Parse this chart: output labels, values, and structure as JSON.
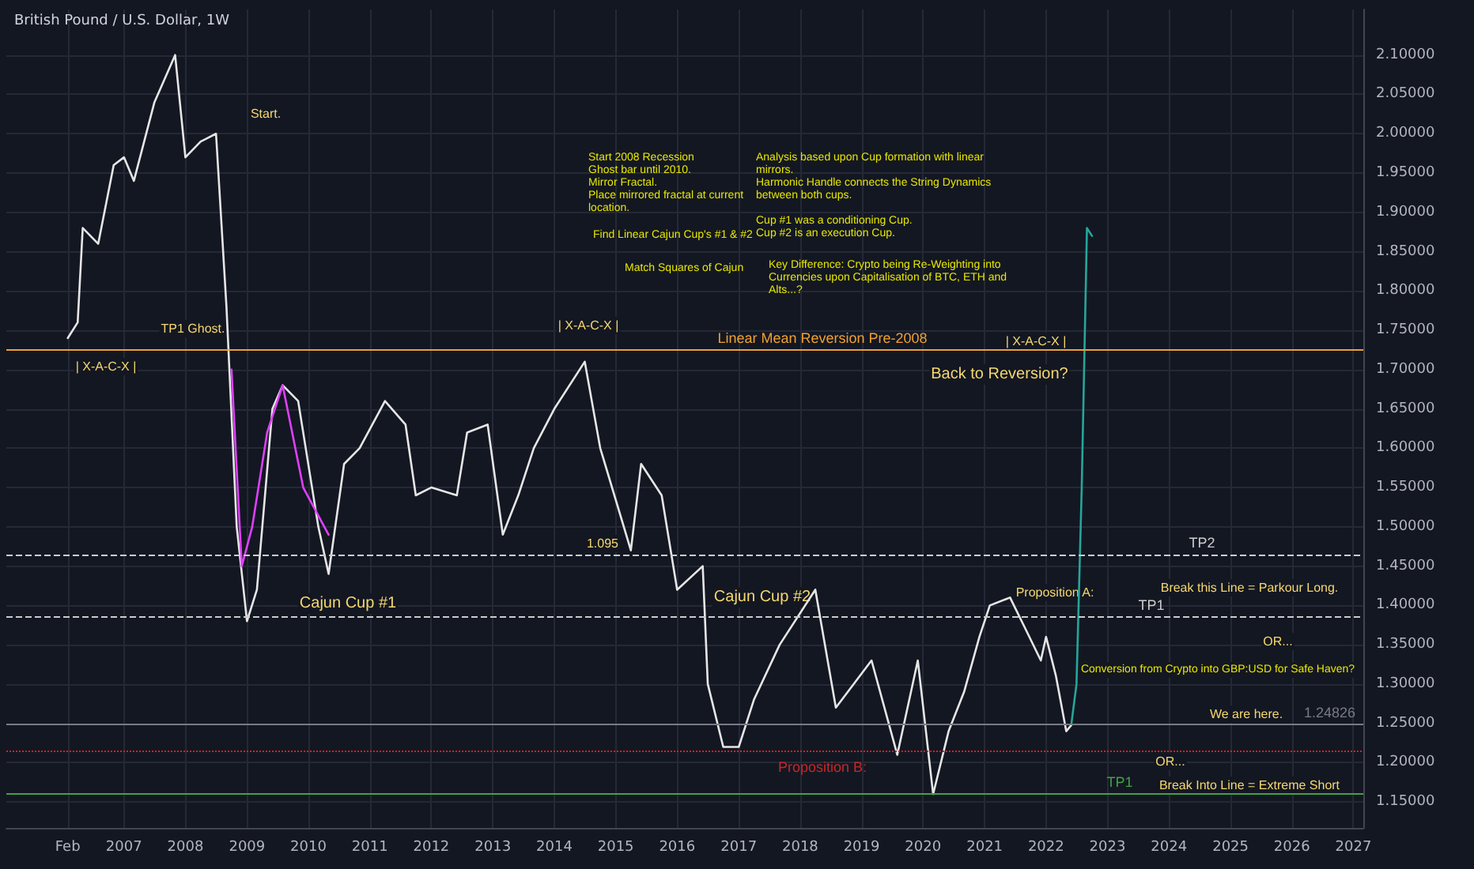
{
  "chart_data": {
    "type": "line",
    "title": "British Pound / U.S. Dollar, 1W",
    "grid": true,
    "marker": "none",
    "line_style": "solid",
    "xlim": [
      "2005-02",
      "2027-03"
    ],
    "xticks": [
      {
        "value": "2006-02",
        "label": "Feb"
      },
      "2007",
      "2008",
      "2009",
      "2010",
      "2011",
      "2012",
      "2013",
      "2014",
      "2015",
      "2016",
      "2017",
      "2018",
      "2019",
      "2020",
      "2021",
      "2022",
      "2023",
      "2024",
      "2025",
      "2026",
      "2027"
    ],
    "ylim": [
      1.117,
      2.158
    ],
    "yticks": [
      {
        "value": 1.15,
        "label": "1.15000"
      },
      {
        "value": 1.2,
        "label": "1.20000"
      },
      {
        "value": 1.25,
        "label": "1.25000"
      },
      {
        "value": 1.3,
        "label": "1.30000"
      },
      {
        "value": 1.35,
        "label": "1.35000"
      },
      {
        "value": 1.4,
        "label": "1.40000"
      },
      {
        "value": 1.45,
        "label": "1.45000"
      },
      {
        "value": 1.5,
        "label": "1.50000"
      },
      {
        "value": 1.55,
        "label": "1.55000"
      },
      {
        "value": 1.6,
        "label": "1.60000"
      },
      {
        "value": 1.65,
        "label": "1.65000"
      },
      {
        "value": 1.7,
        "label": "1.70000"
      },
      {
        "value": 1.75,
        "label": "1.75000"
      },
      {
        "value": 1.8,
        "label": "1.80000"
      },
      {
        "value": 1.85,
        "label": "1.85000"
      },
      {
        "value": 1.9,
        "label": "1.90000"
      },
      {
        "value": 1.95,
        "label": "1.95000"
      },
      {
        "value": 2.0,
        "label": "2.00000"
      },
      {
        "value": 2.05,
        "label": "2.05000"
      },
      {
        "value": 2.1,
        "label": "2.10000"
      }
    ],
    "series": [
      {
        "color": "#e6e6e6",
        "x": [
          "2006-02",
          "2006-04",
          "2006-05",
          "2006-08",
          "2006-11",
          "2007-01",
          "2007-03",
          "2007-07",
          "2007-11",
          "2008-01",
          "2008-04",
          "2008-07",
          "2008-09",
          "2008-11",
          "2009-01",
          "2009-03",
          "2009-06",
          "2009-08",
          "2009-11",
          "2010-03",
          "2010-05",
          "2010-08",
          "2010-11",
          "2011-04",
          "2011-08",
          "2011-10",
          "2012-01",
          "2012-06",
          "2012-08",
          "2012-12",
          "2013-03",
          "2013-06",
          "2013-09",
          "2014-01",
          "2014-07",
          "2014-10",
          "2015-04",
          "2015-06",
          "2015-10",
          "2016-01",
          "2016-06",
          "2016-07",
          "2016-10",
          "2017-01",
          "2017-04",
          "2017-09",
          "2018-04",
          "2018-08",
          "2019-03",
          "2019-08",
          "2019-12",
          "2020-03",
          "2020-06",
          "2020-09",
          "2020-12",
          "2021-02",
          "2021-06",
          "2021-09",
          "2021-12",
          "2022-01",
          "2022-03",
          "2022-05",
          "2022-06"
        ],
        "values": [
          1.74,
          1.76,
          1.88,
          1.86,
          1.96,
          1.97,
          1.94,
          2.04,
          2.1,
          1.97,
          1.99,
          2.0,
          1.78,
          1.5,
          1.38,
          1.42,
          1.65,
          1.68,
          1.66,
          1.5,
          1.44,
          1.58,
          1.6,
          1.66,
          1.63,
          1.54,
          1.55,
          1.54,
          1.62,
          1.63,
          1.49,
          1.54,
          1.6,
          1.65,
          1.71,
          1.6,
          1.47,
          1.58,
          1.54,
          1.42,
          1.45,
          1.3,
          1.22,
          1.22,
          1.28,
          1.35,
          1.42,
          1.27,
          1.33,
          1.21,
          1.33,
          1.16,
          1.24,
          1.29,
          1.36,
          1.4,
          1.41,
          1.37,
          1.33,
          1.36,
          1.31,
          1.24,
          1.248
        ]
      },
      {
        "color": "#e040fb",
        "x": [
          "2008-10",
          "2008-12",
          "2009-02",
          "2009-05",
          "2009-08",
          "2009-12",
          "2010-05"
        ],
        "values": [
          1.7,
          1.45,
          1.5,
          1.62,
          1.68,
          1.55,
          1.49
        ]
      },
      {
        "color": "#26a69a",
        "x": [
          "2022-06",
          "2022-07",
          "2022-08",
          "2022-09",
          "2022-10"
        ],
        "values": [
          1.25,
          1.3,
          1.55,
          1.88,
          1.87
        ]
      }
    ],
    "ref_lines": [
      {
        "axis": "y",
        "value": 1.725,
        "label": "Linear Mean Reversion Pre-2008",
        "color": "#f0a030",
        "line_style": "solid"
      },
      {
        "axis": "y",
        "value": 1.465,
        "label": "TP2",
        "color": "#cccccc",
        "line_style": "dashed"
      },
      {
        "axis": "y",
        "value": 1.385,
        "label": "TP1",
        "color": "#cccccc",
        "line_style": "dashed"
      },
      {
        "axis": "y",
        "value": 1.215,
        "label": "Proposition B:",
        "color": "#c62828",
        "line_style": "dotted"
      },
      {
        "axis": "y",
        "value": 1.16,
        "label": "TP1",
        "color": "#43a047",
        "line_style": "solid"
      },
      {
        "axis": "y",
        "value": 1.24826,
        "label": "1.24826",
        "color": "#787b86",
        "line_style": "solid"
      }
    ],
    "annotations": [
      "Start 2008 Recession\nGhost bar until 2010.\nMirror Fractal.\nPlace mirrored fractal at current\nlocation.",
      "Find Linear Cajun Cup's #1 & #2",
      "Match Squares of Cajun",
      "Analysis based upon Cup formation with linear\nmirrors.\nHarmonic Handle connects the String Dynamics\nbetween both cups.\n\nCup #1 was a conditioning Cup.\nCup #2 is an execution Cup.",
      "Key Difference: Crypto being Re-Weighting into\nCurrencies upon Capitalisation of BTC, ETH and\nAlts...?",
      "Start.",
      "TP1 Ghost.",
      "| X-A-C-X |",
      "| X-A-C-X |",
      "| X-A-C-X |",
      "Back to Reversion?",
      "Cajun Cup #1",
      "Cajun Cup #2",
      "1.095",
      "Proposition A:",
      "Break this Line = Parkour Long.",
      "OR...",
      "Conversion from Crypto into GBP:USD for Safe Haven?",
      "We are here.",
      "OR...",
      "Break Into Line = Extreme Short"
    ]
  }
}
